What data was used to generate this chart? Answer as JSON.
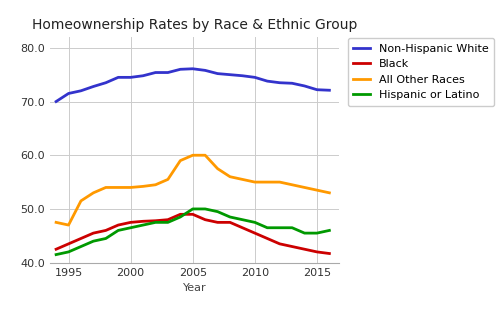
{
  "title": "Homeownership Rates by Race & Ethnic Group",
  "xlabel": "Year",
  "ylabel": "",
  "ylim": [
    40.0,
    82.0
  ],
  "yticks": [
    40.0,
    50.0,
    60.0,
    70.0,
    80.0
  ],
  "series": [
    {
      "label": "Non-Hispanic White",
      "color": "#3333cc",
      "years": [
        1994,
        1995,
        1996,
        1997,
        1998,
        1999,
        2000,
        2001,
        2002,
        2003,
        2004,
        2005,
        2006,
        2007,
        2008,
        2009,
        2010,
        2011,
        2012,
        2013,
        2014,
        2015,
        2016
      ],
      "values": [
        70.0,
        71.5,
        72.0,
        72.8,
        73.5,
        74.5,
        74.5,
        74.8,
        75.4,
        75.4,
        76.0,
        76.1,
        75.8,
        75.2,
        75.0,
        74.8,
        74.5,
        73.8,
        73.5,
        73.4,
        72.9,
        72.2,
        72.1
      ]
    },
    {
      "label": "Black",
      "color": "#cc0000",
      "years": [
        1994,
        1995,
        1996,
        1997,
        1998,
        1999,
        2000,
        2001,
        2002,
        2003,
        2004,
        2005,
        2006,
        2007,
        2008,
        2009,
        2010,
        2011,
        2012,
        2013,
        2014,
        2015,
        2016
      ],
      "values": [
        42.5,
        43.5,
        44.5,
        45.5,
        46.0,
        47.0,
        47.5,
        47.7,
        47.8,
        48.0,
        49.0,
        49.0,
        48.0,
        47.5,
        47.5,
        46.5,
        45.5,
        44.5,
        43.5,
        43.0,
        42.5,
        42.0,
        41.7
      ]
    },
    {
      "label": "All Other Races",
      "color": "#ff9900",
      "years": [
        1994,
        1995,
        1996,
        1997,
        1998,
        1999,
        2000,
        2001,
        2002,
        2003,
        2004,
        2005,
        2006,
        2007,
        2008,
        2009,
        2010,
        2011,
        2012,
        2013,
        2014,
        2015,
        2016
      ],
      "values": [
        47.5,
        47.0,
        51.5,
        53.0,
        54.0,
        54.0,
        54.0,
        54.2,
        54.5,
        55.5,
        59.0,
        60.0,
        60.0,
        57.5,
        56.0,
        55.5,
        55.0,
        55.0,
        55.0,
        54.5,
        54.0,
        53.5,
        53.0
      ]
    },
    {
      "label": "Hispanic or Latino",
      "color": "#009900",
      "years": [
        1994,
        1995,
        1996,
        1997,
        1998,
        1999,
        2000,
        2001,
        2002,
        2003,
        2004,
        2005,
        2006,
        2007,
        2008,
        2009,
        2010,
        2011,
        2012,
        2013,
        2014,
        2015,
        2016
      ],
      "values": [
        41.5,
        42.0,
        43.0,
        44.0,
        44.5,
        46.0,
        46.5,
        47.0,
        47.5,
        47.5,
        48.5,
        50.0,
        50.0,
        49.5,
        48.5,
        48.0,
        47.5,
        46.5,
        46.5,
        46.5,
        45.5,
        45.5,
        46.0
      ]
    }
  ],
  "xticks": [
    1995,
    2000,
    2005,
    2010,
    2015
  ],
  "xlim": [
    1993.5,
    2016.8
  ],
  "background_color": "#ffffff",
  "grid_color": "#cccccc",
  "linewidth": 2.0,
  "title_fontsize": 10,
  "tick_fontsize": 8,
  "legend_fontsize": 8
}
